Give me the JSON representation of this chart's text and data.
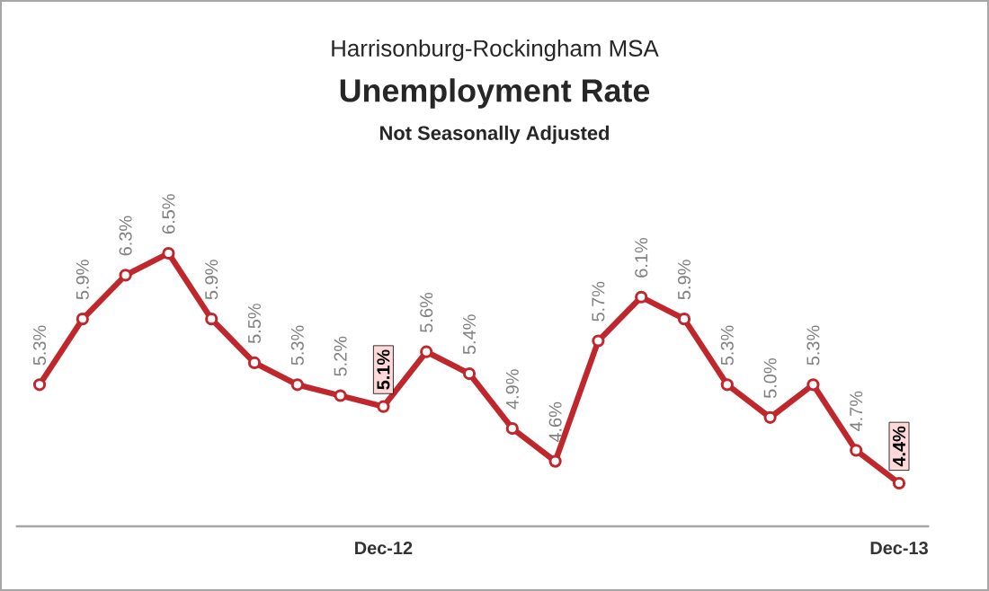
{
  "chart_data": {
    "type": "line",
    "title": "Unemployment Rate",
    "subtitle": "Not Seasonally Adjusted",
    "annotations": [
      "Harrisonburg-Rockingham MSA"
    ],
    "categories": [
      null,
      null,
      null,
      null,
      null,
      null,
      null,
      null,
      "Dec-12",
      null,
      null,
      null,
      null,
      null,
      null,
      null,
      null,
      null,
      null,
      null,
      "Dec-13"
    ],
    "series": [
      {
        "color": "#c0272d",
        "values": [
          5.3,
          5.9,
          6.3,
          6.5,
          5.9,
          5.5,
          5.3,
          5.2,
          5.1,
          5.6,
          5.4,
          4.9,
          4.6,
          5.7,
          6.1,
          5.9,
          5.3,
          5.0,
          5.3,
          4.7,
          4.4
        ],
        "value_labels": [
          "5.3%",
          "5.9%",
          "6.3%",
          "6.5%",
          "5.9%",
          "5.5%",
          "5.3%",
          "5.2%",
          "5.1%",
          "5.6%",
          "5.4%",
          "4.9%",
          "4.6%",
          "5.7%",
          "6.1%",
          "5.9%",
          "5.3%",
          "5.0%",
          "5.3%",
          "4.7%",
          "4.4%"
        ]
      }
    ],
    "marker": "circle",
    "line_style": "solid"
  }
}
